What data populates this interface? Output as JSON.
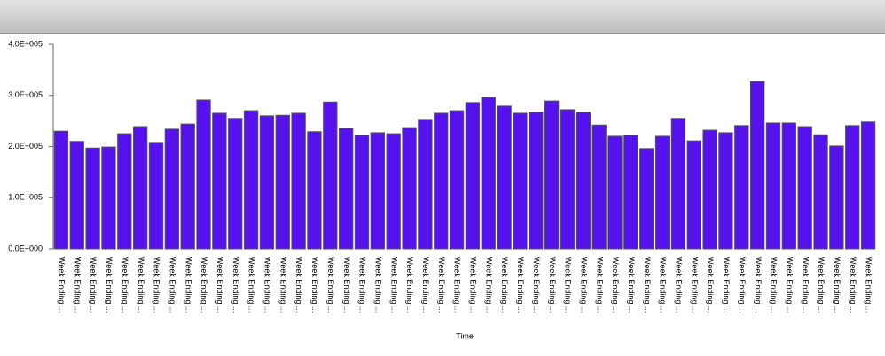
{
  "chart_data": {
    "type": "bar",
    "x_label": "Time",
    "categories": [
      "Week Ending ...",
      "Week Ending ...",
      "Week Ending ...",
      "Week Ending ...",
      "Week Ending ...",
      "Week Ending ...",
      "Week Ending ...",
      "Week Ending ...",
      "Week Ending ...",
      "Week Ending ...",
      "Week Ending ...",
      "Week Ending ...",
      "Week Ending ...",
      "Week Ending ...",
      "Week Ending ...",
      "Week Ending ...",
      "Week Ending ...",
      "Week Ending ...",
      "Week Ending ...",
      "Week Ending ...",
      "Week Ending ...",
      "Week Ending ...",
      "Week Ending ...",
      "Week Ending ...",
      "Week Ending ...",
      "Week Ending ...",
      "Week Ending ...",
      "Week Ending ...",
      "Week Ending ...",
      "Week Ending ...",
      "Week Ending ...",
      "Week Ending ...",
      "Week Ending ...",
      "Week Ending ...",
      "Week Ending ...",
      "Week Ending ...",
      "Week Ending ...",
      "Week Ending ...",
      "Week Ending ...",
      "Week Ending ...",
      "Week Ending ...",
      "Week Ending ...",
      "Week Ending ...",
      "Week Ending ...",
      "Week Ending ...",
      "Week Ending ...",
      "Week Ending ...",
      "Week Ending ...",
      "Week Ending ...",
      "Week Ending ...",
      "Week Ending ...",
      "Week Ending ..."
    ],
    "values": [
      230000,
      210000,
      197000,
      199000,
      225000,
      239000,
      208000,
      234000,
      244000,
      291000,
      265000,
      255000,
      270000,
      260000,
      261000,
      265000,
      229000,
      287000,
      236000,
      222000,
      227000,
      225000,
      237000,
      253000,
      265000,
      270000,
      286000,
      296000,
      279000,
      265000,
      267000,
      289000,
      272000,
      267000,
      242000,
      220000,
      222000,
      196000,
      220000,
      255000,
      211000,
      232000,
      227000,
      241000,
      327000,
      246000,
      246000,
      239000,
      223000,
      201000,
      241000,
      248000
    ],
    "color": "#5511ee",
    "ylim": [
      0,
      400000
    ],
    "yticks": [
      {
        "value": 0,
        "label": "0.0E+000"
      },
      {
        "value": 100000,
        "label": "1.0E+005"
      },
      {
        "value": 200000,
        "label": "2.0E+005"
      },
      {
        "value": 300000,
        "label": "3.0E+005"
      },
      {
        "value": 400000,
        "label": "4.0E+005"
      }
    ]
  }
}
